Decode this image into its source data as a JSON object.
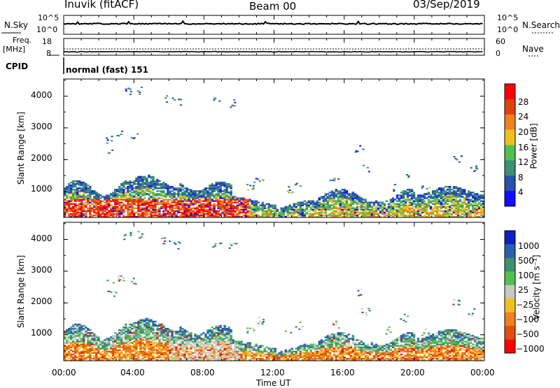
{
  "header": {
    "station": "Inuvik (fitACF)",
    "beam": "Beam 00",
    "date": "03/Sep/2019"
  },
  "strips": {
    "nsky_label": "N.Sky",
    "nsky_ticks": [
      "10^5",
      "10^0"
    ],
    "nsearch_label": "N.Search",
    "nsearch_ticks": [
      "10^5",
      "10^0"
    ],
    "freq_label": "Freq.",
    "freq_unit": "[MHz]",
    "freq_ticks": [
      "18",
      "8"
    ],
    "nave_label": "Nave",
    "nave_ticks": [
      "60",
      "0"
    ],
    "cpid_label": "CPID",
    "cpid_value": "normal (fast) 151"
  },
  "chart_data": [
    {
      "type": "heatmap",
      "name": "power",
      "ylabel": "Slant Range [km]",
      "yticks": [
        1000,
        2000,
        3000,
        4000
      ],
      "ylim": [
        180,
        4540
      ],
      "xlim": [
        0,
        24
      ],
      "xticks": [
        "00:00",
        "04:00",
        "08:00",
        "12:00",
        "16:00",
        "20:00",
        "00:00"
      ],
      "colorbar": {
        "label": "Power [dB]",
        "ticks": [
          "4",
          "8",
          "12",
          "16",
          "20",
          "24",
          "28"
        ],
        "colors": [
          "#1010ff",
          "#2850b0",
          "#3d9070",
          "#50c050",
          "#f0c020",
          "#f08020",
          "#e04010",
          "#ff0000"
        ]
      }
    },
    {
      "type": "heatmap",
      "name": "velocity",
      "ylabel": "Slant Range [km]",
      "yticks": [
        1000,
        2000,
        3000,
        4000
      ],
      "ylim": [
        180,
        4540
      ],
      "xlim": [
        0,
        24
      ],
      "xticks": [
        "00:00",
        "04:00",
        "08:00",
        "12:00",
        "16:00",
        "20:00",
        "00:00"
      ],
      "xlabel": "Time UT",
      "colorbar": {
        "label": "Velocity [m s⁻¹]",
        "ticks": [
          "1000",
          "500",
          "100",
          "25",
          "−25",
          "−100",
          "−500",
          "−1000"
        ],
        "colors": [
          "#1020c0",
          "#2860b0",
          "#3d9070",
          "#50c050",
          "#c8c8c0",
          "#f0c020",
          "#f08020",
          "#e05010",
          "#ff0000"
        ]
      }
    }
  ]
}
